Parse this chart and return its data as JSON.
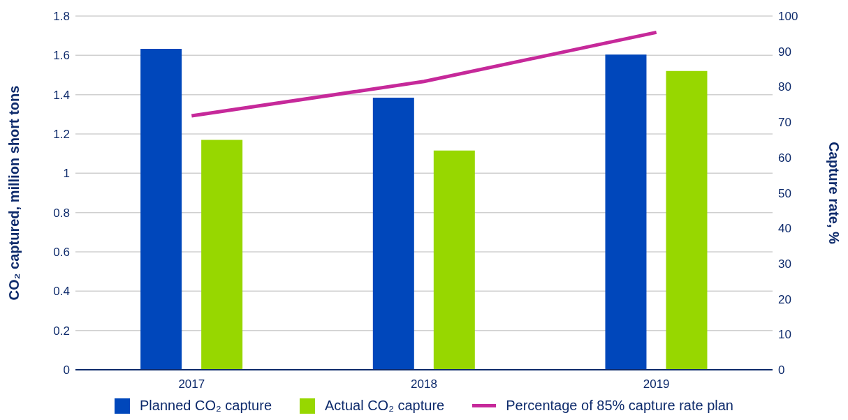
{
  "chart_data": {
    "type": "bar",
    "categories": [
      "2017",
      "2018",
      "2019"
    ],
    "ylabel": "CO₂ captured, million short tons",
    "y2label": "Capture rate, %",
    "ylim": [
      0,
      1.8
    ],
    "yticks": [
      0,
      0.2,
      0.4,
      0.6,
      0.8,
      1,
      1.2,
      1.4,
      1.6,
      1.8
    ],
    "y2lim": [
      0,
      100
    ],
    "y2ticks": [
      0,
      10,
      20,
      30,
      40,
      50,
      60,
      70,
      80,
      90,
      100
    ],
    "grid": "y",
    "legend": "bottom",
    "marker": "none",
    "line_style": "solid",
    "series": [
      {
        "name": "Planned CO₂ capture",
        "color": "#0047bb",
        "values": [
          1.633,
          1.385,
          1.604
        ]
      },
      {
        "name": "Actual CO₂ capture",
        "color": "#97d700",
        "values": [
          1.17,
          1.116,
          1.52
        ]
      },
      {
        "name": "Percentage of 85% capture rate plan",
        "type": "line",
        "axis": "y2",
        "color": "#c6299a",
        "values": [
          71.8,
          81.5,
          95.4
        ]
      }
    ]
  }
}
